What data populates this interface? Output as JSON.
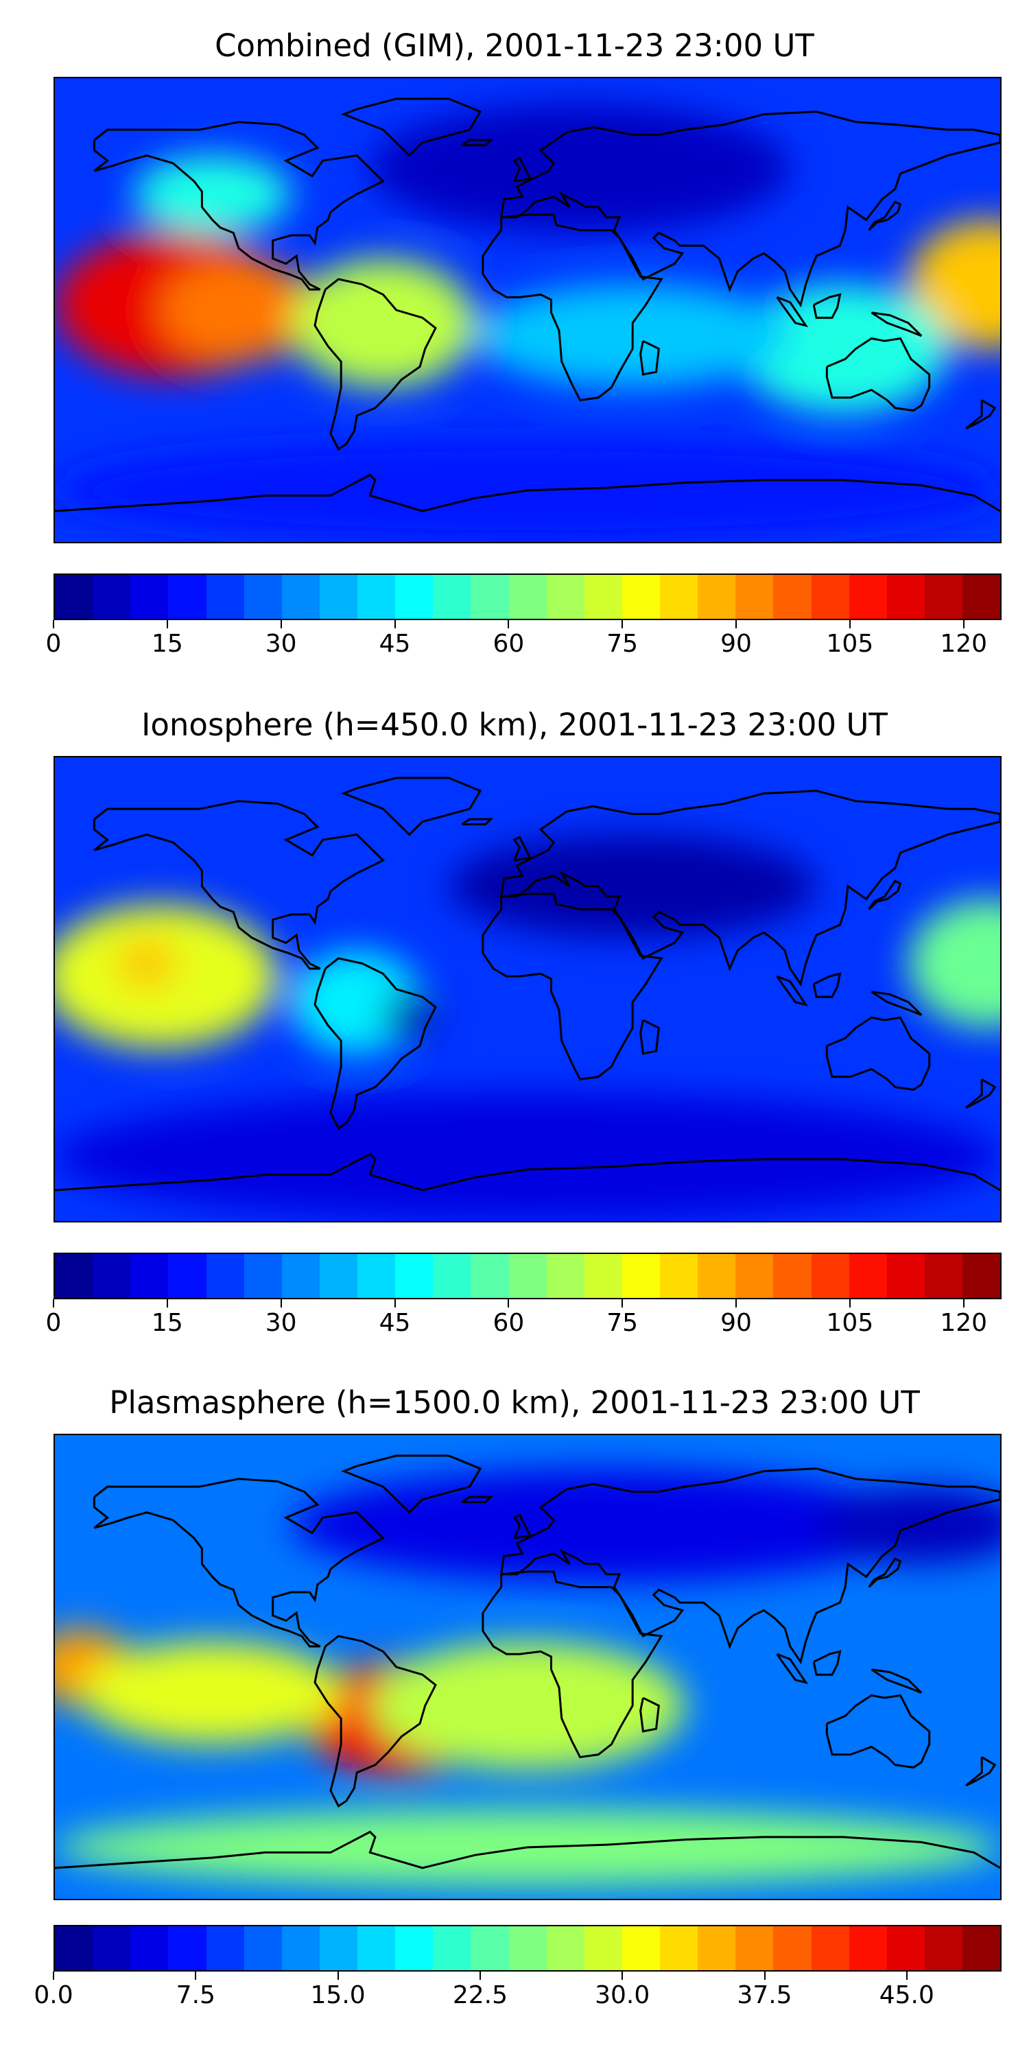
{
  "panels": [
    {
      "title": "Combined (GIM), 2001-11-23 23:00 UT",
      "vmax": 125,
      "colorbar_ticks": [
        "0",
        "15",
        "30",
        "45",
        "60",
        "75",
        "90",
        "105",
        "120"
      ],
      "tick_values": [
        0,
        15,
        30,
        45,
        60,
        75,
        90,
        105,
        120
      ],
      "blobs": [
        {
          "lon": -135,
          "lat": 2,
          "rx": 45,
          "ry": 28,
          "value": 112
        },
        {
          "lon": -110,
          "lat": 0,
          "rx": 30,
          "ry": 20,
          "value": 95
        },
        {
          "lon": -55,
          "lat": -5,
          "rx": 35,
          "ry": 25,
          "value": 70
        },
        {
          "lon": 175,
          "lat": 10,
          "rx": 30,
          "ry": 25,
          "value": 85
        },
        {
          "lon": 120,
          "lat": -15,
          "rx": 40,
          "ry": 25,
          "value": 50
        },
        {
          "lon": 40,
          "lat": -10,
          "rx": 60,
          "ry": 20,
          "value": 40
        },
        {
          "lon": -120,
          "lat": 45,
          "rx": 30,
          "ry": 15,
          "value": 50
        },
        {
          "lon": 20,
          "lat": 55,
          "rx": 80,
          "ry": 25,
          "value": 8
        },
        {
          "lon": 0,
          "lat": -70,
          "rx": 180,
          "ry": 20,
          "value": 18
        }
      ]
    },
    {
      "title": "Ionosphere  (h=450.0 km), 2001-11-23 23:00 UT",
      "vmax": 125,
      "colorbar_ticks": [
        "0",
        "15",
        "30",
        "45",
        "60",
        "75",
        "90",
        "105",
        "120"
      ],
      "tick_values": [
        0,
        15,
        30,
        45,
        60,
        75,
        90,
        105,
        120
      ],
      "blobs": [
        {
          "lon": -140,
          "lat": 5,
          "rx": 45,
          "ry": 28,
          "value": 75
        },
        {
          "lon": -145,
          "lat": 10,
          "rx": 12,
          "ry": 10,
          "value": 85
        },
        {
          "lon": 175,
          "lat": 10,
          "rx": 30,
          "ry": 25,
          "value": 60
        },
        {
          "lon": -65,
          "lat": -5,
          "rx": 25,
          "ry": 20,
          "value": 45
        },
        {
          "lon": 40,
          "lat": 40,
          "rx": 70,
          "ry": 20,
          "value": 5
        },
        {
          "lon": -45,
          "lat": -10,
          "rx": 10,
          "ry": 8,
          "value": 3
        },
        {
          "lon": 0,
          "lat": -65,
          "rx": 180,
          "ry": 25,
          "value": 12
        }
      ]
    },
    {
      "title": "Plasmasphere (h=1500.0 km), 2001-11-23 23:00 UT",
      "vmax": 50,
      "colorbar_ticks": [
        "0.0",
        "7.5",
        "15.0",
        "22.5",
        "30.0",
        "37.5",
        "45.0"
      ],
      "tick_values": [
        0,
        7.5,
        15,
        22.5,
        30,
        37.5,
        45
      ],
      "blobs": [
        {
          "lon": -50,
          "lat": -20,
          "rx": 35,
          "ry": 22,
          "value": 44
        },
        {
          "lon": -45,
          "lat": -22,
          "rx": 15,
          "ry": 10,
          "value": 48
        },
        {
          "lon": -170,
          "lat": 0,
          "rx": 20,
          "ry": 15,
          "value": 36
        },
        {
          "lon": -120,
          "lat": -10,
          "rx": 50,
          "ry": 20,
          "value": 30
        },
        {
          "lon": 0,
          "lat": -15,
          "rx": 60,
          "ry": 25,
          "value": 28
        },
        {
          "lon": 30,
          "lat": 55,
          "rx": 120,
          "ry": 22,
          "value": 5
        },
        {
          "lon": 150,
          "lat": 55,
          "rx": 40,
          "ry": 15,
          "value": 3
        },
        {
          "lon": 0,
          "lat": -70,
          "rx": 180,
          "ry": 15,
          "value": 25
        }
      ]
    }
  ]
}
